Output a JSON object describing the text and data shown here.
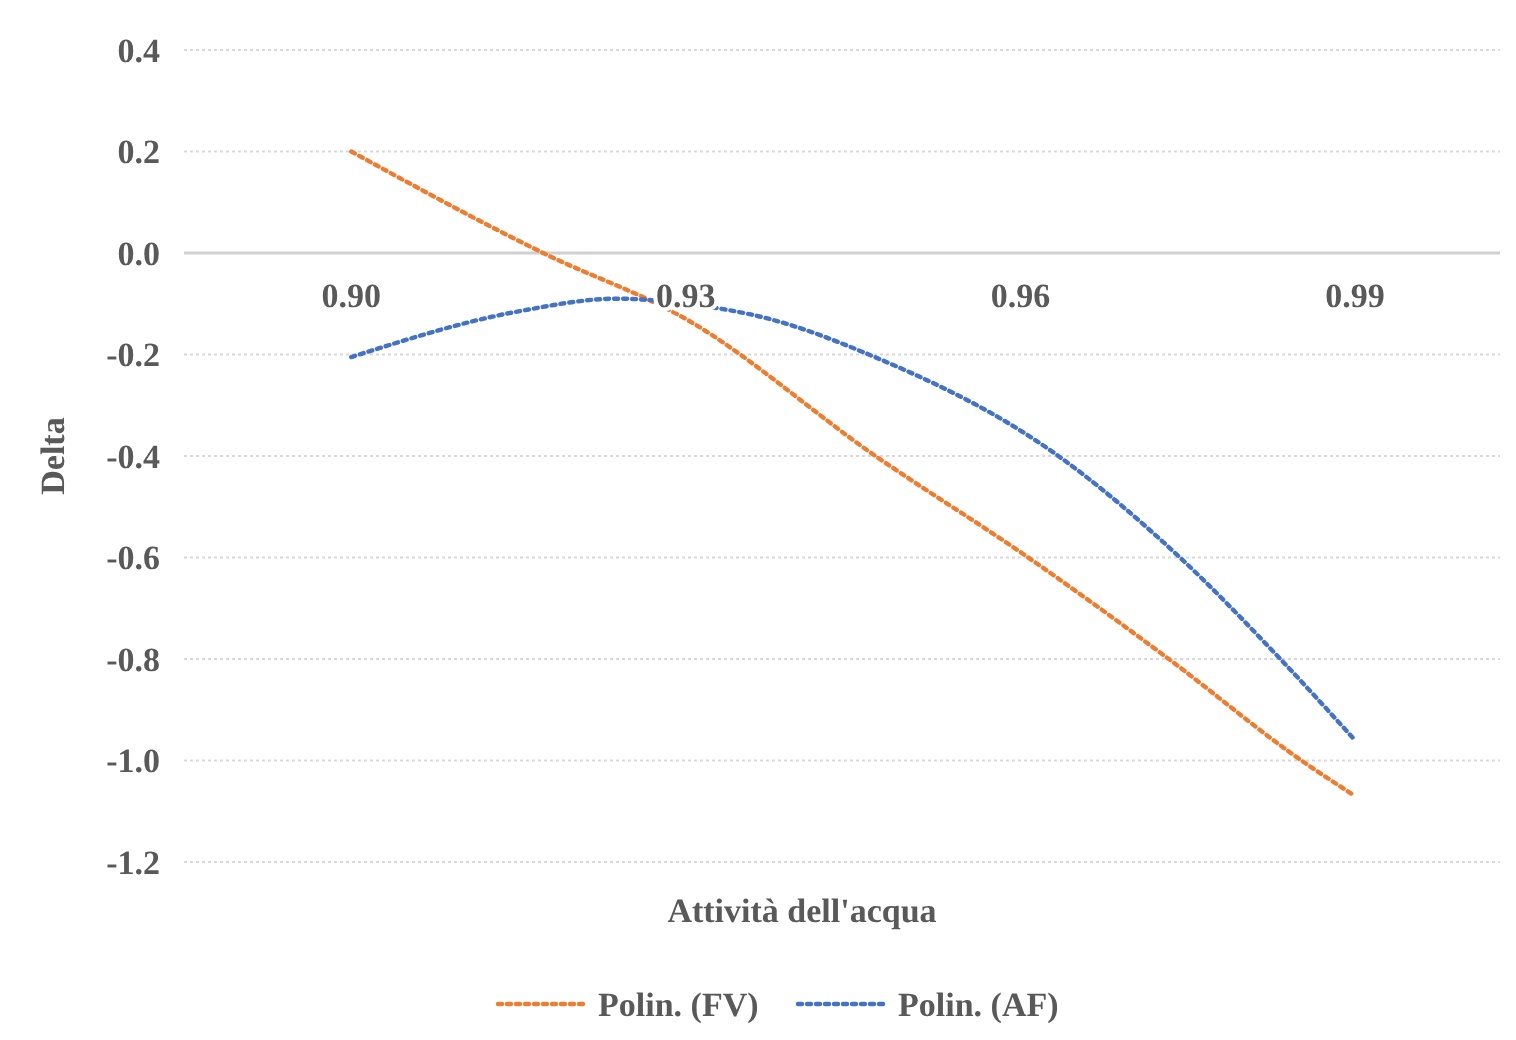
{
  "chart_data": {
    "type": "line",
    "xlabel": "Attività dell'acqua",
    "ylabel": "Delta",
    "xlim": [
      0.885,
      1.003
    ],
    "xticks": [
      {
        "value": 0.9,
        "label": "0.90"
      },
      {
        "value": 0.93,
        "label": "0.93"
      },
      {
        "value": 0.96,
        "label": "0.96"
      },
      {
        "value": 0.99,
        "label": "0.99"
      }
    ],
    "ylim": [
      -1.2,
      0.4
    ],
    "yticks": [
      0.4,
      0.2,
      {
        "value": 0,
        "label": "0.0"
      },
      -0.2,
      -0.4,
      -0.6,
      -0.8,
      {
        "value": -1,
        "label": "-1.0"
      },
      -1.2
    ],
    "grid": "y",
    "legend": "bottom",
    "marker": "none",
    "line_style": "dotted",
    "series": [
      {
        "name": "Polin. (FV)",
        "color": "#ed7d31",
        "x": [
          0.9,
          0.9172,
          0.93,
          0.947,
          0.9607,
          0.9733,
          0.9852,
          0.99
        ],
        "values": [
          0.2,
          0,
          -0.13,
          -0.4,
          -0.6,
          -0.8,
          -1.0,
          -1.07
        ]
      },
      {
        "name": "Polin. (AF)",
        "color": "#4472c4",
        "x": [
          0.9,
          0.915,
          0.9238,
          0.93,
          0.9375,
          0.9464,
          0.9634,
          0.9743,
          0.9833,
          0.99
        ],
        "values": [
          -0.205,
          -0.115,
          -0.09,
          -0.1,
          -0.13,
          -0.2,
          -0.4,
          -0.6,
          -0.8,
          -0.96
        ]
      }
    ]
  }
}
